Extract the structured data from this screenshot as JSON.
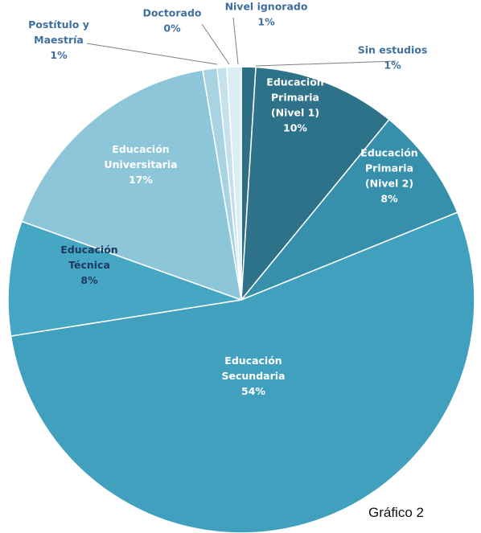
{
  "chart_data": {
    "type": "pie",
    "start": "top",
    "direction": "clockwise",
    "slices": [
      {
        "name": "Sin estudios",
        "lines": [
          "Sin estudios"
        ],
        "value": 1,
        "pct": "1%",
        "color": "#2f6f86",
        "text_color": "#3f6f9f"
      },
      {
        "name": "Educación Primaria (Nivel 1)",
        "lines": [
          "Educación",
          "Primaria",
          "(Nivel 1)"
        ],
        "value": 10,
        "pct": "10%",
        "color": "#2d7289",
        "text_color": "#ffffff"
      },
      {
        "name": "Educación Primaria (Nivel 2)",
        "lines": [
          "Educación",
          "Primaria",
          "(Nivel 2)"
        ],
        "value": 8,
        "pct": "8%",
        "color": "#3690ab",
        "text_color": "#ffffff"
      },
      {
        "name": "Educación Secundaria",
        "lines": [
          "Educación",
          "Secundaria"
        ],
        "value": 54,
        "pct": "54%",
        "color": "#42a0bf",
        "text_color": "#ffffff"
      },
      {
        "name": "Educación Técnica",
        "lines": [
          "Educación",
          "Técnica"
        ],
        "value": 8,
        "pct": "8%",
        "color": "#46a7c4",
        "text_color": "#1f3a60"
      },
      {
        "name": "Educación Universitaria",
        "lines": [
          "Educación",
          "Universitaria"
        ],
        "value": 17,
        "pct": "17%",
        "color": "#8dc5d9",
        "text_color": "#ffffff"
      },
      {
        "name": "Postítulo y Maestría",
        "lines": [
          "Postítulo y",
          "Maestría"
        ],
        "value": 1,
        "pct": "1%",
        "color": "#a8d3e2",
        "text_color": "#3f6f9f"
      },
      {
        "name": "Doctorado",
        "lines": [
          "Doctorado"
        ],
        "value": 0,
        "pct": "0%",
        "color": "#c5e2ec",
        "text_color": "#3f6f9f"
      },
      {
        "name": "Nivel ignorado",
        "lines": [
          "Nivel ignorado"
        ],
        "value": 1,
        "pct": "1%",
        "color": "#d9eef5",
        "text_color": "#3f6f9f"
      }
    ]
  },
  "caption": "Gráfico 2"
}
